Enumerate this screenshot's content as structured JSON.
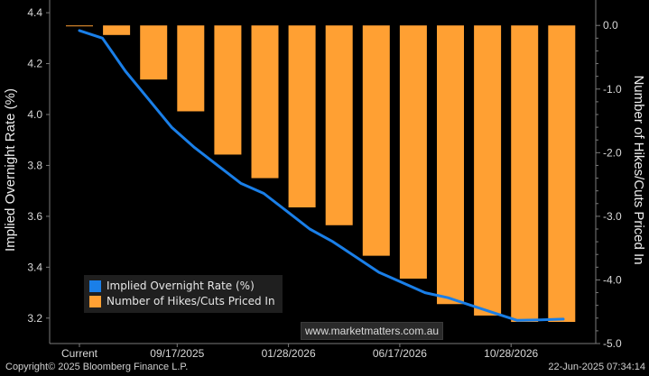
{
  "chart_data": {
    "type": "bar",
    "x_labels": [
      "Current",
      "09/17/2025",
      "01/28/2026",
      "06/17/2026",
      "10/28/2026"
    ],
    "left_axis": {
      "label": "Implied Overnight Rate (%)",
      "ylim": [
        3.1,
        4.45
      ],
      "ticks": [
        "4.4",
        "4.2",
        "4.0",
        "3.8",
        "3.6",
        "3.4",
        "3.2"
      ]
    },
    "right_axis": {
      "label": "Number of Hikes/Cuts Priced In",
      "ylim": [
        -5.0,
        0.4
      ],
      "ticks": [
        "0.0",
        "-1.0",
        "-2.0",
        "-3.0",
        "-4.0",
        "-5.0"
      ]
    },
    "series": [
      {
        "name": "Implied Overnight Rate (%)",
        "type": "line",
        "axis": "left",
        "color": "#1a7fe8",
        "values": [
          4.33,
          4.3,
          4.17,
          4.06,
          3.95,
          3.87,
          3.8,
          3.73,
          3.69,
          3.62,
          3.55,
          3.5,
          3.44,
          3.38,
          3.34,
          3.3,
          3.28,
          3.25,
          3.22,
          3.191,
          3.193,
          3.196
        ]
      },
      {
        "name": "Number of Hikes/Cuts Priced In",
        "type": "bar",
        "axis": "right",
        "color": "#ffa033",
        "values": [
          0.0,
          -0.15,
          -0.85,
          -1.35,
          -2.03,
          -2.4,
          -2.86,
          -3.14,
          -3.62,
          -3.98,
          -4.38,
          -4.56,
          -4.66,
          -4.66
        ]
      }
    ],
    "grid": false,
    "legend_position": "bottom-left"
  },
  "watermark": "www.marketmatters.com.au",
  "footer": {
    "copyright": "Copyright© 2025 Bloomberg Finance L.P.",
    "timestamp": "22-Jun-2025 07:34:14"
  }
}
